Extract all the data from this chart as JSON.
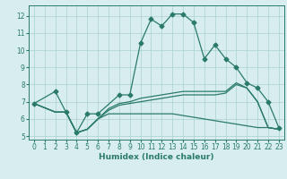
{
  "line1_x": [
    0,
    2,
    3,
    4,
    5,
    6,
    8,
    9,
    10,
    11,
    12,
    13,
    14,
    15,
    16,
    17,
    18,
    19,
    20,
    21,
    22,
    23
  ],
  "line1_y": [
    6.9,
    7.6,
    6.4,
    5.2,
    6.3,
    6.3,
    7.4,
    7.4,
    10.4,
    11.8,
    11.4,
    12.1,
    12.1,
    11.6,
    9.5,
    10.3,
    9.5,
    9.0,
    8.1,
    7.8,
    7.0,
    5.5
  ],
  "line2_x": [
    0,
    2,
    3,
    4,
    5,
    6,
    7,
    8,
    9,
    10,
    11,
    12,
    13,
    14,
    15,
    16,
    17,
    18,
    19,
    20,
    21,
    22,
    23
  ],
  "line2_y": [
    6.9,
    6.4,
    6.4,
    5.2,
    5.4,
    6.0,
    6.3,
    6.3,
    6.3,
    6.3,
    6.3,
    6.3,
    6.3,
    6.2,
    6.1,
    6.0,
    5.9,
    5.8,
    5.7,
    5.6,
    5.5,
    5.5,
    5.4
  ],
  "line3_x": [
    0,
    2,
    3,
    4,
    5,
    6,
    7,
    8,
    9,
    10,
    11,
    12,
    13,
    14,
    15,
    16,
    17,
    18,
    19,
    20,
    21,
    22,
    23
  ],
  "line3_y": [
    6.9,
    6.4,
    6.4,
    5.2,
    5.4,
    6.0,
    6.5,
    6.8,
    6.9,
    7.0,
    7.1,
    7.2,
    7.3,
    7.4,
    7.4,
    7.4,
    7.4,
    7.5,
    8.0,
    7.8,
    7.0,
    5.5,
    5.4
  ],
  "line4_x": [
    0,
    2,
    3,
    4,
    5,
    6,
    7,
    8,
    9,
    10,
    11,
    12,
    13,
    14,
    15,
    16,
    17,
    18,
    19,
    20,
    21,
    22,
    23
  ],
  "line4_y": [
    6.9,
    6.4,
    6.4,
    5.2,
    5.4,
    6.0,
    6.6,
    6.9,
    7.0,
    7.2,
    7.3,
    7.4,
    7.5,
    7.6,
    7.6,
    7.6,
    7.6,
    7.6,
    8.1,
    7.8,
    7.0,
    5.5,
    5.4
  ],
  "color": "#2a7a6a",
  "background": "#d8eeee",
  "grid_color": "#aad0d0",
  "xlabel": "Humidex (Indice chaleur)",
  "xlim": [
    -0.5,
    23.5
  ],
  "ylim": [
    4.8,
    12.6
  ],
  "yticks": [
    5,
    6,
    7,
    8,
    9,
    10,
    11,
    12
  ],
  "xticks": [
    0,
    1,
    2,
    3,
    4,
    5,
    6,
    7,
    8,
    9,
    10,
    11,
    12,
    13,
    14,
    15,
    16,
    17,
    18,
    19,
    20,
    21,
    22,
    23
  ],
  "marker_size": 2.5,
  "linewidth": 0.9,
  "tick_fontsize": 5.5,
  "xlabel_fontsize": 6.5
}
